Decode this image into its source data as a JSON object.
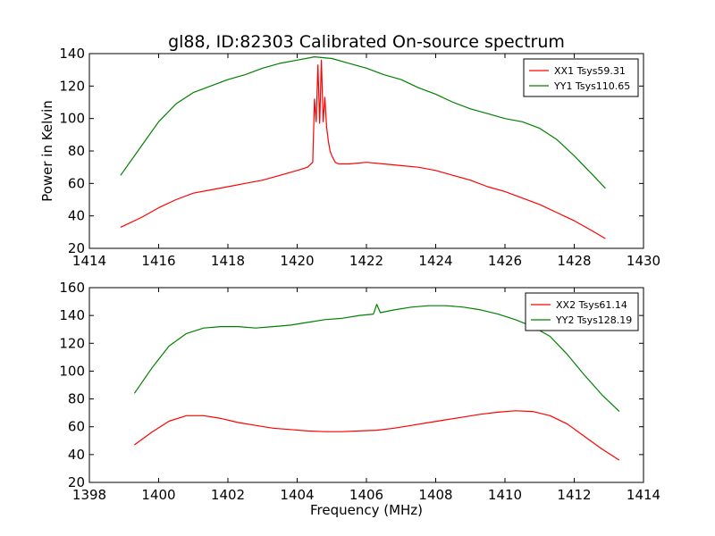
{
  "title": "gl88, ID:82303 Calibrated On-source spectrum",
  "chart_data": [
    {
      "type": "line",
      "title": "gl88, ID:82303 Calibrated On-source spectrum",
      "xlabel": "",
      "ylabel": "Power in Kelvin",
      "xlim": [
        1414,
        1430
      ],
      "ylim": [
        20,
        140
      ],
      "xticks": [
        1414,
        1416,
        1418,
        1420,
        1422,
        1424,
        1426,
        1428,
        1430
      ],
      "yticks": [
        20,
        40,
        60,
        80,
        100,
        120,
        140
      ],
      "grid": false,
      "legend_position": "top-right",
      "series": [
        {
          "name": "XX1 Tsys59.31",
          "color": "#ff0000",
          "x": [
            1414.9,
            1415.5,
            1416.0,
            1416.5,
            1417.0,
            1417.5,
            1418.0,
            1418.5,
            1419.0,
            1419.5,
            1420.0,
            1420.3,
            1420.45,
            1420.5,
            1420.55,
            1420.6,
            1420.65,
            1420.7,
            1420.75,
            1420.8,
            1420.85,
            1420.9,
            1420.95,
            1421.0,
            1421.1,
            1421.2,
            1421.5,
            1422.0,
            1422.5,
            1423.0,
            1423.5,
            1424.0,
            1424.5,
            1425.0,
            1425.5,
            1426.0,
            1426.5,
            1427.0,
            1427.5,
            1428.0,
            1428.5,
            1428.9
          ],
          "y": [
            33,
            39,
            45,
            50,
            54,
            56,
            58,
            60,
            62,
            65,
            68,
            70,
            73,
            112,
            98,
            133,
            97,
            136,
            98,
            113,
            95,
            86,
            80,
            77,
            73,
            72,
            72,
            73,
            72,
            71,
            70,
            68,
            65,
            62,
            58,
            55,
            51,
            47,
            42,
            37,
            31,
            26
          ]
        },
        {
          "name": "YY1 Tsys110.65",
          "color": "#008000",
          "x": [
            1414.9,
            1415.5,
            1416.0,
            1416.5,
            1417.0,
            1417.5,
            1418.0,
            1418.5,
            1419.0,
            1419.5,
            1420.0,
            1420.5,
            1421.0,
            1421.5,
            1422.0,
            1422.5,
            1423.0,
            1423.5,
            1424.0,
            1424.5,
            1425.0,
            1425.5,
            1426.0,
            1426.5,
            1427.0,
            1427.5,
            1428.0,
            1428.5,
            1428.9
          ],
          "y": [
            65,
            83,
            98,
            109,
            116,
            120,
            124,
            127,
            131,
            134,
            136,
            138,
            137,
            134,
            131,
            127,
            124,
            119,
            115,
            110,
            106,
            103,
            100,
            98,
            94,
            87,
            77,
            66,
            57
          ]
        }
      ]
    },
    {
      "type": "line",
      "title": "",
      "xlabel": "Frequency (MHz)",
      "ylabel": "",
      "xlim": [
        1398,
        1414
      ],
      "ylim": [
        20,
        160
      ],
      "xticks": [
        1398,
        1400,
        1402,
        1404,
        1406,
        1408,
        1410,
        1412,
        1414
      ],
      "yticks": [
        20,
        40,
        60,
        80,
        100,
        120,
        140,
        160
      ],
      "grid": false,
      "legend_position": "top-right",
      "series": [
        {
          "name": "XX2 Tsys61.14",
          "color": "#ff0000",
          "x": [
            1399.3,
            1399.8,
            1400.3,
            1400.8,
            1401.3,
            1401.8,
            1402.3,
            1402.8,
            1403.3,
            1403.8,
            1404.3,
            1404.8,
            1405.3,
            1405.8,
            1406.3,
            1406.8,
            1407.3,
            1407.8,
            1408.3,
            1408.8,
            1409.3,
            1409.8,
            1410.3,
            1410.8,
            1411.3,
            1411.8,
            1412.3,
            1412.8,
            1413.3
          ],
          "y": [
            47,
            56,
            64,
            68,
            68,
            66,
            63,
            61,
            59,
            58,
            57,
            56.5,
            56.5,
            57,
            57.5,
            59,
            61,
            63,
            65,
            67,
            69,
            70.5,
            71.5,
            71,
            68,
            62,
            53,
            44,
            36
          ]
        },
        {
          "name": "YY2 Tsys128.19",
          "color": "#008000",
          "x": [
            1399.3,
            1399.8,
            1400.3,
            1400.8,
            1401.3,
            1401.8,
            1402.3,
            1402.8,
            1403.3,
            1403.8,
            1404.3,
            1404.8,
            1405.3,
            1405.8,
            1406.2,
            1406.3,
            1406.4,
            1406.8,
            1407.3,
            1407.8,
            1408.3,
            1408.8,
            1409.3,
            1409.8,
            1410.3,
            1410.8,
            1411.3,
            1411.8,
            1412.3,
            1412.8,
            1413.3
          ],
          "y": [
            84,
            102,
            118,
            127,
            131,
            132,
            132,
            131,
            132,
            133,
            135,
            137,
            138,
            140,
            141,
            148,
            142,
            144,
            146,
            147,
            147,
            146,
            144,
            141,
            137,
            132,
            125,
            112,
            97,
            83,
            71
          ]
        }
      ]
    }
  ]
}
